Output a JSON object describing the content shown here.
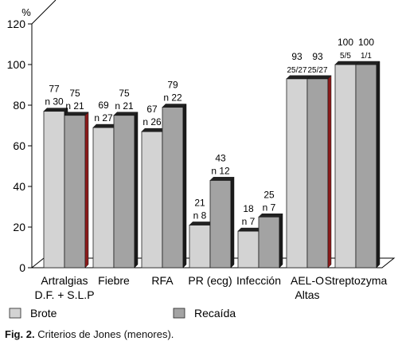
{
  "caption": {
    "prefix": "Fig. 2.",
    "text": "Criterios de Jones (menores)."
  },
  "colors": {
    "brote": "#d3d3d3",
    "recaida": "#a3a3a3",
    "shadow": "#1a1a1a",
    "red_shade": "#8b1a1a"
  },
  "chart_data": {
    "type": "bar",
    "ylabel": "%",
    "ylim": [
      0,
      120
    ],
    "yticks": [
      0,
      20,
      40,
      60,
      80,
      100,
      120
    ],
    "categories": [
      [
        "Artralgias",
        "D.F. + S.L.P"
      ],
      [
        "Fiebre"
      ],
      [
        "RFA"
      ],
      [
        "PR (ecg)"
      ],
      [
        "Infección"
      ],
      [
        "AEL-O",
        "Altas"
      ],
      [
        "Streptozyma"
      ]
    ],
    "series": [
      {
        "name": "Brote",
        "values": [
          77,
          69,
          67,
          21,
          18,
          93,
          100
        ],
        "labels": [
          "77",
          "69",
          "67",
          "21",
          "18",
          "93",
          "100"
        ],
        "n_labels": [
          "n 30",
          "n 27",
          "n 26",
          "n 8",
          "n 7",
          "25/27",
          "5/5"
        ]
      },
      {
        "name": "Recaída",
        "values": [
          75,
          75,
          79,
          43,
          25,
          93,
          100
        ],
        "labels": [
          "75",
          "75",
          "79",
          "43",
          "25",
          "93",
          "100"
        ],
        "n_labels": [
          "n 21",
          "n 21",
          "n 22",
          "n 12",
          "n 7",
          "25/27",
          "1/1"
        ]
      }
    ],
    "grid": false,
    "legend": "bottom"
  }
}
